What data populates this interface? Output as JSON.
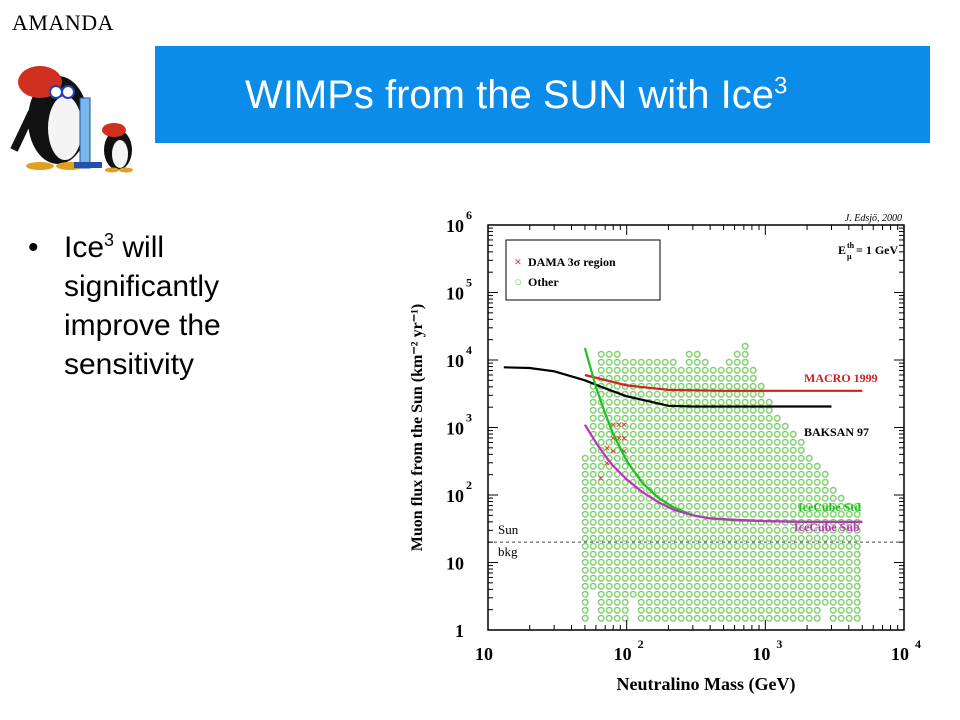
{
  "header": {
    "logo_text": "AMANDA",
    "title_main": "WIMPs from the SUN with Ice",
    "title_sup": "3",
    "bar_color": "#0a8ce8"
  },
  "content": {
    "bullet_symbol": "•",
    "bullet_prefix": "Ice",
    "bullet_sup": "3",
    "bullet_rest": " will significantly improve the sensitivity"
  },
  "chart_data": {
    "type": "scatter",
    "credit": "J. Edsjö, 2000",
    "xlabel": "Neutralino Mass (GeV)",
    "ylabel": "Muon flux from the Sun (km⁻² yr⁻¹)",
    "xscale": "log",
    "yscale": "log",
    "xlim": [
      10,
      10000
    ],
    "ylim": [
      1,
      1000000
    ],
    "x_ticks": [
      {
        "base": "10",
        "exp": ""
      },
      {
        "base": "10",
        "exp": "2"
      },
      {
        "base": "10",
        "exp": "3"
      },
      {
        "base": "10",
        "exp": "4"
      }
    ],
    "y_ticks": [
      {
        "base": "1",
        "exp": ""
      },
      {
        "base": "10",
        "exp": ""
      },
      {
        "base": "10",
        "exp": "2"
      },
      {
        "base": "10",
        "exp": "3"
      },
      {
        "base": "10",
        "exp": "4"
      },
      {
        "base": "10",
        "exp": "5"
      },
      {
        "base": "10",
        "exp": "6"
      }
    ],
    "threshold_label": "E",
    "threshold_sup": "th",
    "threshold_sub": "μ",
    "threshold_value": " = 1 GeV",
    "legend": {
      "placement": "top-left",
      "entries": [
        {
          "symbol": "×",
          "label": "DAMA 3σ region",
          "color": "#e03030"
        },
        {
          "symbol": "○",
          "label": "Other",
          "color": "#7ccf6a"
        }
      ]
    },
    "sun_bkg": {
      "label1": "Sun",
      "label2": "bkg",
      "value": 20
    },
    "dama_region": [
      [
        65,
        180
      ],
      [
        72,
        300
      ],
      [
        72,
        500
      ],
      [
        80,
        450
      ],
      [
        80,
        700
      ],
      [
        80,
        1100
      ],
      [
        88,
        700
      ],
      [
        88,
        1100
      ],
      [
        96,
        450
      ],
      [
        96,
        700
      ],
      [
        96,
        1100
      ]
    ],
    "other_envelope": {
      "color": "#7ccf6a",
      "mass_min": 47,
      "mass_max": 5000,
      "lower_flux_min": 1.3,
      "upper_points": [
        [
          47,
          100
        ],
        [
          60,
          12000
        ],
        [
          80,
          14000
        ],
        [
          120,
          10000
        ],
        [
          180,
          12000
        ],
        [
          250,
          9000
        ],
        [
          300,
          16000
        ],
        [
          450,
          8000
        ],
        [
          700,
          18000
        ],
        [
          900,
          5000
        ],
        [
          1200,
          1500
        ],
        [
          1800,
          700
        ],
        [
          2500,
          250
        ],
        [
          3500,
          110
        ],
        [
          5000,
          60
        ]
      ],
      "gaps": [
        [
          60,
          1.3,
          4
        ],
        [
          105,
          1.3,
          3
        ],
        [
          2600,
          1.3,
          2.2
        ]
      ]
    },
    "series": [
      {
        "name": "MACRO 1999",
        "color": "#d02020",
        "x": [
          50,
          100,
          200,
          500,
          1000,
          2000,
          5000
        ],
        "y": [
          6000,
          4200,
          3600,
          3500,
          3500,
          3500,
          3500
        ]
      },
      {
        "name": "BAKSAN 97",
        "color": "#000000",
        "x": [
          13,
          20,
          30,
          50,
          70,
          100,
          150,
          200,
          300,
          500,
          1000,
          2000,
          3000
        ],
        "y": [
          7800,
          7600,
          6800,
          5000,
          3800,
          2900,
          2400,
          2100,
          2050,
          2050,
          2050,
          2050,
          2050
        ]
      },
      {
        "name": "IceCube Std",
        "color": "#20c020",
        "x": [
          50,
          60,
          70,
          80,
          100,
          130,
          170,
          220,
          300,
          400,
          600,
          1000,
          2000,
          5000
        ],
        "y": [
          15000,
          4000,
          1600,
          800,
          320,
          150,
          90,
          65,
          50,
          45,
          42,
          41,
          40,
          40
        ]
      },
      {
        "name": "IceCube Sub",
        "color": "#c030c0",
        "x": [
          50,
          60,
          70,
          80,
          100,
          130,
          170,
          220,
          300,
          400,
          600,
          1000,
          2000,
          5000
        ],
        "y": [
          1100,
          600,
          380,
          270,
          170,
          110,
          78,
          60,
          50,
          45,
          43,
          41,
          40,
          40
        ]
      }
    ]
  }
}
